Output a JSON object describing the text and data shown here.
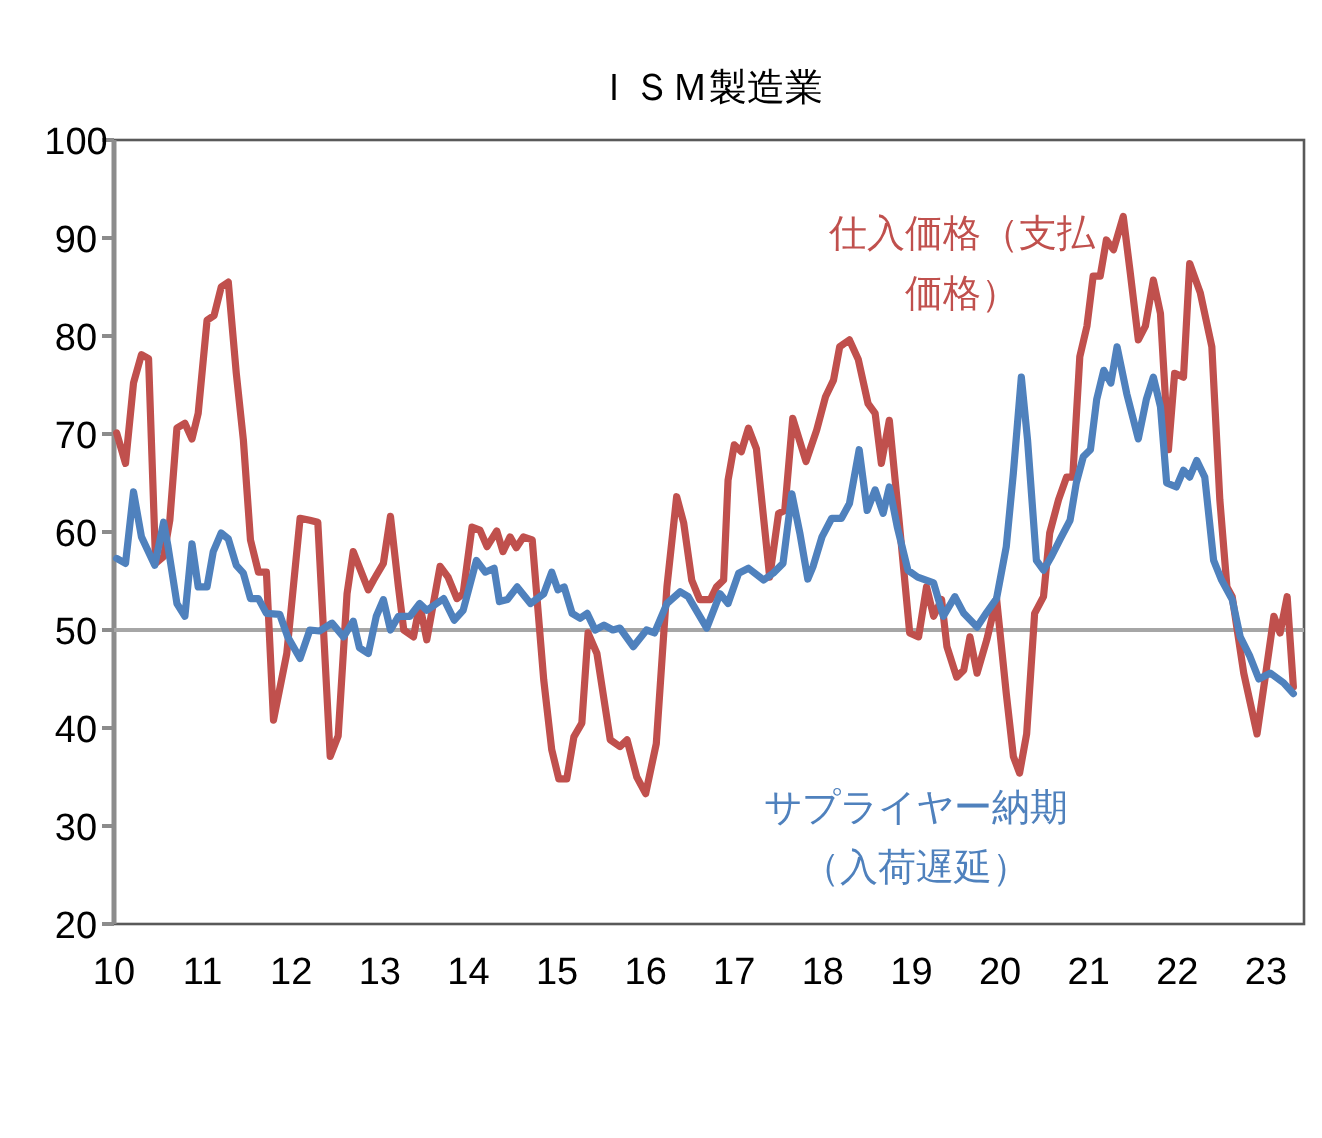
{
  "chart_data": {
    "type": "line",
    "title": "ＩＳＭ製造業",
    "xlim": [
      2010,
      2023.43
    ],
    "ylim": [
      20,
      100
    ],
    "xticks": [
      {
        "value": 2010,
        "label": "10"
      },
      {
        "value": 2011,
        "label": "11"
      },
      {
        "value": 2012,
        "label": "12"
      },
      {
        "value": 2013,
        "label": "13"
      },
      {
        "value": 2014,
        "label": "14"
      },
      {
        "value": 2015,
        "label": "15"
      },
      {
        "value": 2016,
        "label": "16"
      },
      {
        "value": 2017,
        "label": "17"
      },
      {
        "value": 2018,
        "label": "18"
      },
      {
        "value": 2019,
        "label": "19"
      },
      {
        "value": 2020,
        "label": "20"
      },
      {
        "value": 2021,
        "label": "21"
      },
      {
        "value": 2022,
        "label": "22"
      },
      {
        "value": 2023,
        "label": "23"
      }
    ],
    "yticks": [
      20,
      30,
      40,
      50,
      60,
      70,
      80,
      90,
      100
    ],
    "grid": false,
    "legend": false,
    "marker": "none",
    "line_style": "solid",
    "ref_lines": [
      {
        "axis": "y",
        "value": 50,
        "color": "#a6a6a6"
      }
    ],
    "series": [
      {
        "name": "仕入価格（支払価格）",
        "color": "#c0504d",
        "x": [
          2010.03,
          2010.13,
          2010.22,
          2010.31,
          2010.39,
          2010.47,
          2010.56,
          2010.63,
          2010.71,
          2010.8,
          2010.88,
          2010.95,
          2011.05,
          2011.13,
          2011.21,
          2011.29,
          2011.38,
          2011.46,
          2011.54,
          2011.63,
          2011.72,
          2011.8,
          2011.95,
          2012.1,
          2012.21,
          2012.3,
          2012.44,
          2012.53,
          2012.63,
          2012.7,
          2012.87,
          2012.93,
          2013.04,
          2013.12,
          2013.21,
          2013.27,
          2013.38,
          2013.45,
          2013.53,
          2013.68,
          2013.77,
          2013.87,
          2013.94,
          2014.04,
          2014.13,
          2014.21,
          2014.32,
          2014.39,
          2014.47,
          2014.54,
          2014.62,
          2014.72,
          2014.85,
          2014.94,
          2015.02,
          2015.11,
          2015.19,
          2015.28,
          2015.35,
          2015.45,
          2015.6,
          2015.71,
          2015.79,
          2015.9,
          2016.0,
          2016.12,
          2016.24,
          2016.35,
          2016.43,
          2016.52,
          2016.61,
          2016.73,
          2016.8,
          2016.88,
          2016.93,
          2017.0,
          2017.08,
          2017.16,
          2017.25,
          2017.4,
          2017.5,
          2017.57,
          2017.66,
          2017.81,
          2017.93,
          2018.03,
          2018.12,
          2018.19,
          2018.3,
          2018.4,
          2018.51,
          2018.59,
          2018.66,
          2018.75,
          2018.86,
          2018.98,
          2019.08,
          2019.17,
          2019.25,
          2019.34,
          2019.4,
          2019.51,
          2019.59,
          2019.66,
          2019.74,
          2019.85,
          2019.96,
          2020.07,
          2020.15,
          2020.22,
          2020.3,
          2020.39,
          2020.49,
          2020.56,
          2020.66,
          2020.75,
          2020.82,
          2020.9,
          2020.98,
          2021.05,
          2021.13,
          2021.2,
          2021.28,
          2021.39,
          2021.47,
          2021.56,
          2021.64,
          2021.73,
          2021.81,
          2021.9,
          2021.97,
          2022.07,
          2022.14,
          2022.26,
          2022.39,
          2022.48,
          2022.56,
          2022.62,
          2022.75,
          2022.9,
          2023.01,
          2023.09,
          2023.16,
          2023.24,
          2023.31
        ],
        "values": [
          70.1,
          67.0,
          75.2,
          78.1,
          77.7,
          56.8,
          57.5,
          61.2,
          70.6,
          71.1,
          69.5,
          72.1,
          81.6,
          82.1,
          85.0,
          85.5,
          76.2,
          69.4,
          59.2,
          55.9,
          55.9,
          40.8,
          47.6,
          61.4,
          61.2,
          61.0,
          37.1,
          39.2,
          53.7,
          58.0,
          54.1,
          55.1,
          56.8,
          61.6,
          54.4,
          50.0,
          49.3,
          52.6,
          49.0,
          56.5,
          55.4,
          53.2,
          53.7,
          60.5,
          60.2,
          58.5,
          60.1,
          58.0,
          59.5,
          58.4,
          59.5,
          59.2,
          44.9,
          37.8,
          34.8,
          34.8,
          39.1,
          40.5,
          49.7,
          47.6,
          38.8,
          38.1,
          38.8,
          35.0,
          33.3,
          38.4,
          54.4,
          63.6,
          60.9,
          55.1,
          53.1,
          53.1,
          54.4,
          55.1,
          65.3,
          68.9,
          68.2,
          70.6,
          68.5,
          55.4,
          61.9,
          62.2,
          71.6,
          67.2,
          70.4,
          73.8,
          75.5,
          78.9,
          79.6,
          77.6,
          73.1,
          72.1,
          67.0,
          71.4,
          61.2,
          49.7,
          49.3,
          54.4,
          51.4,
          53.1,
          48.3,
          45.2,
          45.9,
          49.3,
          45.6,
          49.0,
          53.2,
          43.5,
          37.1,
          35.4,
          39.4,
          51.7,
          53.4,
          59.9,
          63.3,
          65.6,
          65.6,
          77.9,
          81.0,
          86.1,
          86.1,
          89.8,
          88.8,
          92.2,
          86.4,
          79.6,
          81.0,
          85.7,
          82.3,
          68.4,
          76.2,
          75.8,
          87.4,
          84.4,
          78.9,
          63.3,
          54.4,
          53.4,
          45.6,
          39.4,
          46.3,
          51.4,
          49.7,
          53.4,
          44.2
        ]
      },
      {
        "name": "サプライヤー納期（入荷遅延）",
        "color": "#4f81bd",
        "x": [
          2010.03,
          2010.13,
          2010.22,
          2010.31,
          2010.46,
          2010.56,
          2010.61,
          2010.71,
          2010.8,
          2010.88,
          2010.95,
          2011.05,
          2011.12,
          2011.21,
          2011.29,
          2011.38,
          2011.46,
          2011.54,
          2011.63,
          2011.72,
          2011.87,
          2011.96,
          2012.1,
          2012.21,
          2012.32,
          2012.46,
          2012.59,
          2012.7,
          2012.77,
          2012.87,
          2012.96,
          2013.04,
          2013.12,
          2013.21,
          2013.34,
          2013.45,
          2013.53,
          2013.72,
          2013.84,
          2013.94,
          2014.09,
          2014.19,
          2014.29,
          2014.35,
          2014.44,
          2014.55,
          2014.7,
          2014.85,
          2014.94,
          2015.01,
          2015.08,
          2015.17,
          2015.26,
          2015.34,
          2015.43,
          2015.53,
          2015.63,
          2015.71,
          2015.86,
          2016.01,
          2016.1,
          2016.24,
          2016.39,
          2016.48,
          2016.69,
          2016.84,
          2016.93,
          2017.05,
          2017.16,
          2017.33,
          2017.44,
          2017.55,
          2017.65,
          2017.74,
          2017.83,
          2017.89,
          2017.99,
          2018.1,
          2018.21,
          2018.3,
          2018.41,
          2018.5,
          2018.59,
          2018.68,
          2018.75,
          2018.84,
          2018.96,
          2019.07,
          2019.25,
          2019.36,
          2019.49,
          2019.59,
          2019.74,
          2019.85,
          2019.96,
          2020.07,
          2020.15,
          2020.24,
          2020.31,
          2020.41,
          2020.49,
          2020.58,
          2020.68,
          2020.79,
          2020.86,
          2020.94,
          2021.02,
          2021.09,
          2021.17,
          2021.25,
          2021.32,
          2021.43,
          2021.56,
          2021.65,
          2021.73,
          2021.81,
          2021.88,
          2021.99,
          2022.07,
          2022.14,
          2022.22,
          2022.31,
          2022.41,
          2022.5,
          2022.62,
          2022.71,
          2022.82,
          2022.92,
          2023.05,
          2023.2,
          2023.31
        ],
        "values": [
          57.3,
          56.8,
          64.1,
          59.5,
          56.6,
          61.0,
          58.5,
          52.7,
          51.4,
          58.8,
          54.4,
          54.4,
          58.0,
          59.9,
          59.3,
          56.6,
          55.8,
          53.2,
          53.2,
          51.7,
          51.6,
          49.3,
          47.1,
          50.0,
          49.9,
          50.7,
          49.3,
          50.9,
          48.2,
          47.6,
          51.4,
          53.1,
          50.0,
          51.4,
          51.4,
          52.7,
          52.0,
          53.2,
          51.0,
          52.0,
          57.1,
          55.9,
          56.3,
          52.9,
          53.1,
          54.4,
          52.7,
          53.7,
          55.9,
          54.1,
          54.4,
          51.7,
          51.2,
          51.7,
          50.0,
          50.5,
          50.0,
          50.2,
          48.3,
          50.0,
          49.7,
          52.7,
          53.9,
          53.4,
          50.2,
          53.7,
          52.7,
          55.8,
          56.3,
          55.1,
          55.8,
          56.8,
          63.9,
          59.9,
          55.2,
          56.5,
          59.5,
          61.4,
          61.4,
          62.9,
          68.4,
          62.2,
          64.3,
          61.9,
          64.6,
          60.5,
          56.1,
          55.4,
          54.8,
          51.4,
          53.4,
          51.7,
          50.3,
          51.8,
          53.2,
          58.5,
          66.0,
          75.8,
          69.4,
          57.1,
          56.1,
          57.5,
          59.3,
          61.2,
          65.0,
          67.7,
          68.4,
          73.5,
          76.5,
          75.2,
          78.9,
          74.1,
          69.5,
          73.5,
          75.8,
          72.8,
          65.0,
          64.6,
          66.3,
          65.6,
          67.3,
          65.6,
          57.1,
          55.1,
          53.1,
          49.3,
          47.3,
          45.0,
          45.6,
          44.6,
          43.5
        ]
      }
    ]
  }
}
